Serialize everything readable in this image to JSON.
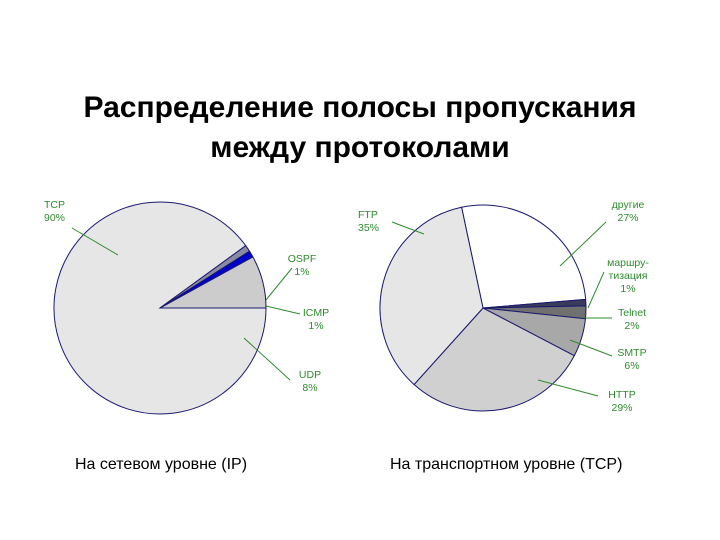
{
  "title": {
    "line1": "Распределение полосы пропускания",
    "line2": "между протоколами"
  },
  "captions": {
    "left": "На сетевом уровне (IP)",
    "right": "На транспортном уровне (TCP)"
  },
  "colors": {
    "label_text": "#2e8b2e",
    "outline": "#1a1a6e"
  },
  "chart_data": [
    {
      "type": "pie",
      "title": "",
      "slices": [
        {
          "label": "TCP",
          "value": 90,
          "display": "90%",
          "color": "#e6e6e6"
        },
        {
          "label": "OSPF",
          "value": 1,
          "display": "1%",
          "color": "#8a8aa0"
        },
        {
          "label": "ICMP",
          "value": 1,
          "display": "1%",
          "color": "#0000cc"
        },
        {
          "label": "UDP",
          "value": 8,
          "display": "8%",
          "color": "#cccccc"
        }
      ]
    },
    {
      "type": "pie",
      "title": "",
      "slices": [
        {
          "label": "другие",
          "value": 27,
          "display": "27%",
          "color": "#ffffff"
        },
        {
          "label": "маршру-\nтизация",
          "value": 1,
          "display": "1%",
          "color": "#3a3a5a"
        },
        {
          "label": "Telnet",
          "value": 2,
          "display": "2%",
          "color": "#707070"
        },
        {
          "label": "SMTP",
          "value": 6,
          "display": "6%",
          "color": "#a8a8a8"
        },
        {
          "label": "HTTP",
          "value": 29,
          "display": "29%",
          "color": "#d0d0d0"
        },
        {
          "label": "FTP",
          "value": 35,
          "display": "35%",
          "color": "#e6e6e6"
        }
      ]
    }
  ]
}
